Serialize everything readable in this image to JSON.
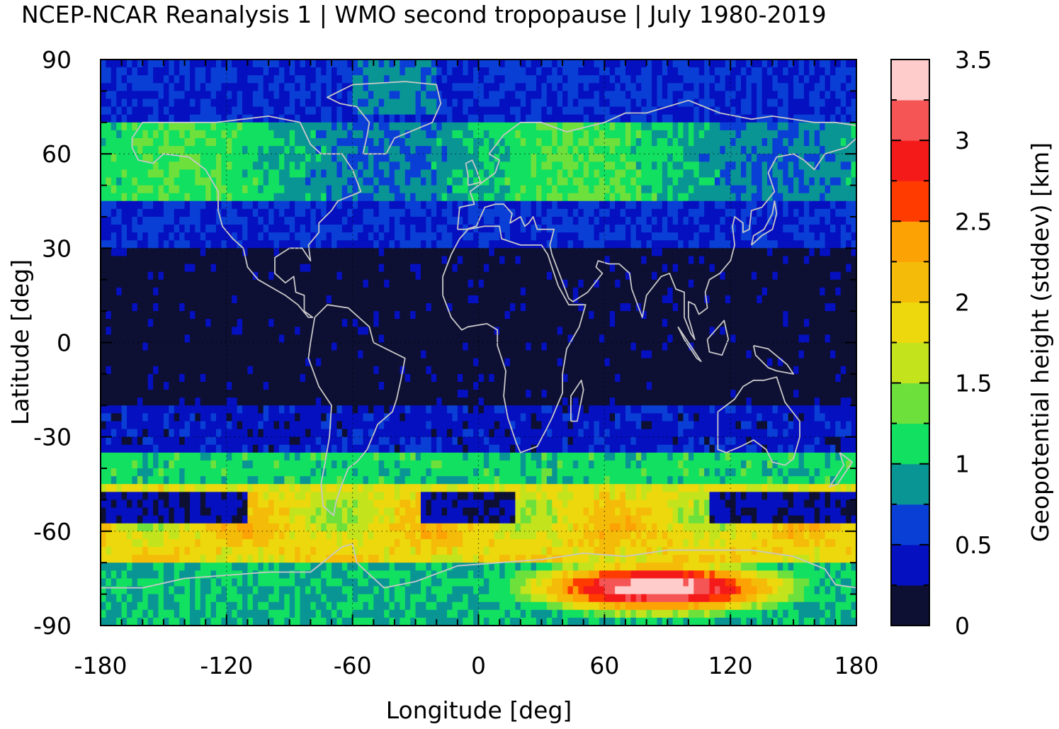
{
  "chart_data": {
    "type": "heatmap",
    "title": "NCEP-NCAR Reanalysis 1 | WMO second tropopause | July 1980-2019",
    "xlabel": "Longitude [deg]",
    "ylabel": "Latitude [deg]",
    "colorbar_label": "Geopotential height (stddev) [km]",
    "xlim": [
      -180,
      180
    ],
    "ylim": [
      -90,
      90
    ],
    "x_ticks": [
      -180,
      -120,
      -60,
      0,
      60,
      120,
      180
    ],
    "y_ticks": [
      -90,
      -60,
      -30,
      0,
      30,
      60,
      90
    ],
    "x_tick_labels": [
      "-180",
      "-120",
      "-60",
      "0",
      "60",
      "120",
      "180"
    ],
    "y_tick_labels": [
      "-90",
      "-60",
      "-30",
      "0",
      "30",
      "60",
      "90"
    ],
    "colorbar": {
      "range": [
        0,
        3.5
      ],
      "step": 0.25,
      "tick_labels": [
        "0",
        "0.5",
        "1",
        "1.5",
        "2",
        "2.5",
        "3",
        "3.5"
      ],
      "tick_values": [
        0,
        0.5,
        1,
        1.5,
        2,
        2.5,
        3,
        3.5
      ],
      "colors": [
        "#0d0f33",
        "#0510c0",
        "#0a3fd6",
        "#0a9595",
        "#12e060",
        "#6ee03c",
        "#c3e41c",
        "#ecd80c",
        "#f4bc08",
        "#fca204",
        "#ff3b00",
        "#f51a1a",
        "#f55555",
        "#ffcccc"
      ]
    },
    "grid": "dotted at major ticks",
    "field_summary": [
      {
        "lat_band": [
          70,
          90
        ],
        "level": 0.5
      },
      {
        "lat_band": [
          45,
          70
        ],
        "level": 1.0
      },
      {
        "lat_band": [
          30,
          45
        ],
        "level": 0.5
      },
      {
        "lat_band": [
          -20,
          30
        ],
        "level": 0.1
      },
      {
        "lat_band": [
          -35,
          -20
        ],
        "level": 0.4
      },
      {
        "lat_band": [
          -45,
          -35
        ],
        "level": 1.1
      },
      {
        "lat_band": [
          -58,
          -45
        ],
        "level": 1.8
      },
      {
        "lat_band": [
          -70,
          -58
        ],
        "level": 1.9
      },
      {
        "lat_band": [
          -90,
          -70
        ],
        "level": 1.0
      }
    ],
    "features": [
      {
        "name": "antarctic-maximum",
        "lon": 85,
        "lat": -78,
        "level": 3.5
      },
      {
        "name": "southern-jet-minimum",
        "lat": -52,
        "level": 0.1
      }
    ],
    "coastline_color": "#c8c8c8"
  }
}
